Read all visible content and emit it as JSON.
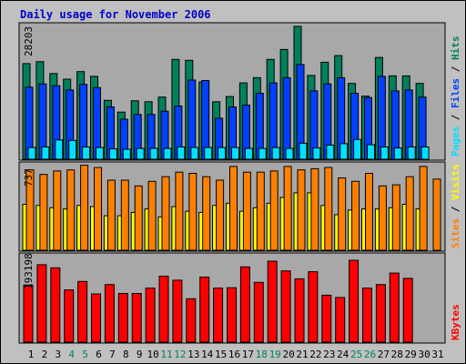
{
  "title": "Daily usage for November 2006",
  "colors": {
    "hits": "#00805c",
    "files": "#0040ff",
    "pages": "#00e0ff",
    "visits": "#ffff00",
    "sites": "#ff8000",
    "kbytes": "#ff0000",
    "weekend_label": "#00805c",
    "weekday_label": "#000000",
    "background": "#c0c0c0",
    "panel": "#a8a8a8"
  },
  "chart_data": [
    {
      "type": "bar",
      "panel": "hits-files-pages",
      "ymax_label": "28203",
      "ylim": [
        0,
        28203
      ],
      "legend": {
        "hits": "Hits",
        "files": "Files",
        "pages": "Pages",
        "sep": " / "
      },
      "categories": [
        "1",
        "2",
        "3",
        "4",
        "5",
        "6",
        "7",
        "8",
        "9",
        "10",
        "11",
        "12",
        "13",
        "14",
        "15",
        "16",
        "17",
        "18",
        "19",
        "20",
        "21",
        "22",
        "23",
        "24",
        "25",
        "26",
        "27",
        "28",
        "29",
        "30",
        "31"
      ],
      "series": [
        {
          "name": "Hits",
          "values": [
            20300,
            20700,
            18200,
            17000,
            18600,
            17600,
            12500,
            10000,
            12400,
            12200,
            13200,
            21200,
            21000,
            16400,
            12200,
            13300,
            16200,
            17300,
            21200,
            23300,
            28200,
            17800,
            20600,
            22000,
            16100,
            13400,
            21600,
            17700,
            17700,
            16100,
            null
          ]
        },
        {
          "name": "Files",
          "values": [
            15300,
            16000,
            15600,
            14700,
            15900,
            15200,
            11100,
            8500,
            9500,
            9500,
            10200,
            11300,
            16800,
            16700,
            8700,
            11100,
            11500,
            14000,
            16200,
            17300,
            20100,
            14500,
            16000,
            17300,
            14000,
            13100,
            17600,
            14500,
            14700,
            13200,
            null
          ]
        },
        {
          "name": "Pages",
          "values": [
            2500,
            2600,
            4100,
            4000,
            2600,
            2500,
            2200,
            2100,
            2300,
            2300,
            2300,
            2600,
            2500,
            2500,
            2500,
            2500,
            2300,
            2300,
            2500,
            2300,
            3400,
            2400,
            3000,
            3300,
            4200,
            3100,
            2600,
            2400,
            2600,
            2600,
            null
          ]
        }
      ]
    },
    {
      "type": "bar",
      "panel": "visits-sites",
      "ymax_label": "737",
      "ylim": [
        0,
        737
      ],
      "legend": {
        "visits": "Visits",
        "sites": "Sites",
        "sep": " / "
      },
      "categories": [
        "1",
        "2",
        "3",
        "4",
        "5",
        "6",
        "7",
        "8",
        "9",
        "10",
        "11",
        "12",
        "13",
        "14",
        "15",
        "16",
        "17",
        "18",
        "19",
        "20",
        "21",
        "22",
        "23",
        "24",
        "25",
        "26",
        "27",
        "28",
        "29",
        "30",
        "31"
      ],
      "series": [
        {
          "name": "Visits",
          "values": [
            400,
            390,
            370,
            360,
            390,
            380,
            300,
            300,
            330,
            360,
            290,
            380,
            340,
            330,
            390,
            410,
            340,
            370,
            410,
            460,
            500,
            500,
            390,
            310,
            350,
            360,
            360,
            370,
            400,
            360,
            null
          ]
        },
        {
          "name": "Sites",
          "values": [
            700,
            660,
            690,
            700,
            740,
            720,
            610,
            610,
            560,
            600,
            640,
            680,
            670,
            640,
            610,
            730,
            680,
            680,
            690,
            730,
            700,
            710,
            720,
            630,
            600,
            670,
            560,
            570,
            640,
            730,
            620
          ]
        }
      ]
    },
    {
      "type": "bar",
      "panel": "kbytes",
      "ymax_label": "193198",
      "ylim": [
        0,
        193198
      ],
      "legend": {
        "kbytes": "KBytes"
      },
      "categories": [
        "1",
        "2",
        "3",
        "4",
        "5",
        "6",
        "7",
        "8",
        "9",
        "10",
        "11",
        "12",
        "13",
        "14",
        "15",
        "16",
        "17",
        "18",
        "19",
        "20",
        "21",
        "22",
        "23",
        "24",
        "25",
        "26",
        "27",
        "28",
        "29",
        "30",
        "31"
      ],
      "series": [
        {
          "name": "KBytes",
          "values": [
            129000,
            175000,
            168000,
            118000,
            137000,
            109000,
            130000,
            110000,
            110000,
            122000,
            149000,
            140000,
            98000,
            147000,
            122000,
            123000,
            170000,
            135000,
            183000,
            161000,
            143000,
            159000,
            106000,
            101000,
            185000,
            122000,
            130000,
            156000,
            144000,
            null,
            null
          ]
        }
      ]
    }
  ],
  "days": [
    "1",
    "2",
    "3",
    "4",
    "5",
    "6",
    "7",
    "8",
    "9",
    "10",
    "11",
    "12",
    "13",
    "14",
    "15",
    "16",
    "17",
    "18",
    "19",
    "20",
    "21",
    "22",
    "23",
    "24",
    "25",
    "26",
    "27",
    "28",
    "29",
    "30",
    "31"
  ],
  "weekend_days": [
    4,
    5,
    11,
    12,
    18,
    19,
    25,
    26
  ]
}
